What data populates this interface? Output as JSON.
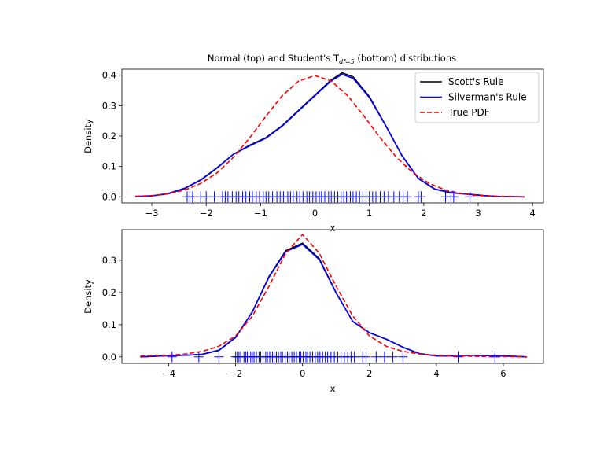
{
  "figure": {
    "title": "Normal (top) and Student's T",
    "title_sub": "df=5",
    "title_tail": " (bottom) distributions",
    "background": "#ffffff"
  },
  "chart_data": [
    {
      "type": "line",
      "title": "Normal (top) and Student's T_df=5 (bottom) distributions",
      "xlabel": "x",
      "ylabel": "Density",
      "xlim": [
        -3.55,
        4.2
      ],
      "ylim": [
        -0.02,
        0.42
      ],
      "xticks": [
        -3,
        -2,
        -1,
        0,
        1,
        2,
        3,
        4
      ],
      "yticks": [
        0.0,
        0.1,
        0.2,
        0.3,
        0.4
      ],
      "xtick_labels": [
        "−3",
        "−2",
        "−1",
        "0",
        "1",
        "2",
        "3",
        "4"
      ],
      "ytick_labels": [
        "0.0",
        "0.1",
        "0.2",
        "0.3",
        "0.4"
      ],
      "legend": {
        "placement": "top-right",
        "entries": [
          {
            "label": "Scott's Rule",
            "color": "#000000",
            "style": "solid"
          },
          {
            "label": "Silverman's Rule",
            "color": "#0000ff",
            "style": "solid"
          },
          {
            "label": "True PDF",
            "color": "#ff0000",
            "style": "dashed"
          }
        ]
      },
      "series": [
        {
          "name": "Scott's Rule",
          "color": "#000000",
          "style": "solid",
          "x": [
            -3.3,
            -3.0,
            -2.7,
            -2.4,
            -2.1,
            -1.8,
            -1.5,
            -1.2,
            -0.9,
            -0.6,
            -0.3,
            0.0,
            0.3,
            0.5,
            0.7,
            1.0,
            1.3,
            1.6,
            1.9,
            2.2,
            2.5,
            2.8,
            3.1,
            3.4,
            3.85
          ],
          "y": [
            0.001,
            0.003,
            0.01,
            0.027,
            0.055,
            0.095,
            0.14,
            0.17,
            0.195,
            0.235,
            0.285,
            0.335,
            0.385,
            0.408,
            0.395,
            0.33,
            0.235,
            0.135,
            0.06,
            0.025,
            0.013,
            0.009,
            0.004,
            0.001,
            0.0
          ]
        },
        {
          "name": "Silverman's Rule",
          "color": "#0000ff",
          "style": "solid",
          "x": [
            -3.3,
            -3.0,
            -2.7,
            -2.4,
            -2.1,
            -1.8,
            -1.5,
            -1.2,
            -0.9,
            -0.6,
            -0.3,
            0.0,
            0.3,
            0.5,
            0.7,
            1.0,
            1.3,
            1.6,
            1.9,
            2.2,
            2.5,
            2.8,
            3.1,
            3.4,
            3.85
          ],
          "y": [
            0.001,
            0.003,
            0.011,
            0.028,
            0.056,
            0.096,
            0.14,
            0.168,
            0.193,
            0.233,
            0.283,
            0.333,
            0.382,
            0.403,
            0.39,
            0.327,
            0.234,
            0.136,
            0.061,
            0.026,
            0.014,
            0.009,
            0.004,
            0.001,
            0.0
          ]
        },
        {
          "name": "True PDF",
          "color": "#ff0000",
          "style": "dashed",
          "x": [
            -3.3,
            -3.0,
            -2.7,
            -2.4,
            -2.1,
            -1.8,
            -1.5,
            -1.2,
            -0.9,
            -0.6,
            -0.3,
            0.0,
            0.3,
            0.6,
            0.9,
            1.2,
            1.5,
            1.8,
            2.1,
            2.4,
            2.7,
            3.0,
            3.3,
            3.6,
            3.85
          ],
          "y": [
            0.002,
            0.004,
            0.01,
            0.022,
            0.044,
            0.079,
            0.13,
            0.194,
            0.266,
            0.333,
            0.381,
            0.399,
            0.381,
            0.333,
            0.266,
            0.194,
            0.13,
            0.079,
            0.044,
            0.022,
            0.01,
            0.004,
            0.002,
            0.001,
            0.0
          ]
        }
      ],
      "rug": {
        "color": "#0000ff",
        "values": [
          -2.35,
          -2.3,
          -2.25,
          -2.1,
          -2.0,
          -1.85,
          -1.7,
          -1.65,
          -1.6,
          -1.52,
          -1.45,
          -1.4,
          -1.33,
          -1.27,
          -1.2,
          -1.15,
          -1.08,
          -1.02,
          -0.95,
          -0.9,
          -0.85,
          -0.78,
          -0.7,
          -0.64,
          -0.58,
          -0.5,
          -0.45,
          -0.4,
          -0.33,
          -0.28,
          -0.22,
          -0.15,
          -0.1,
          -0.04,
          0.02,
          0.08,
          0.12,
          0.18,
          0.25,
          0.3,
          0.36,
          0.42,
          0.48,
          0.53,
          0.58,
          0.65,
          0.7,
          0.76,
          0.82,
          0.88,
          0.94,
          1.0,
          1.06,
          1.12,
          1.2,
          1.27,
          1.35,
          1.45,
          1.55,
          1.62,
          1.7,
          1.9,
          1.95,
          2.4,
          2.5,
          2.55,
          2.85
        ]
      }
    },
    {
      "type": "line",
      "title": "",
      "xlabel": "x",
      "ylabel": "Density",
      "xlim": [
        -5.4,
        7.2
      ],
      "ylim": [
        -0.02,
        0.395
      ],
      "xticks": [
        -4,
        -2,
        0,
        2,
        4,
        6
      ],
      "yticks": [
        0.0,
        0.1,
        0.2,
        0.3
      ],
      "xtick_labels": [
        "−4",
        "−2",
        "0",
        "2",
        "4",
        "6"
      ],
      "ytick_labels": [
        "0.0",
        "0.1",
        "0.2",
        "0.3"
      ],
      "series": [
        {
          "name": "Scott's Rule",
          "color": "#000000",
          "style": "solid",
          "x": [
            -4.85,
            -4.0,
            -3.5,
            -3.0,
            -2.5,
            -2.0,
            -1.5,
            -1.0,
            -0.5,
            0.0,
            0.5,
            1.0,
            1.5,
            2.0,
            2.5,
            3.0,
            3.5,
            4.0,
            4.5,
            5.0,
            5.5,
            6.0,
            6.7
          ],
          "y": [
            0.0,
            0.004,
            0.005,
            0.008,
            0.02,
            0.06,
            0.14,
            0.25,
            0.33,
            0.353,
            0.305,
            0.2,
            0.11,
            0.075,
            0.055,
            0.03,
            0.01,
            0.003,
            0.003,
            0.005,
            0.004,
            0.003,
            0.0
          ]
        },
        {
          "name": "Silverman's Rule",
          "color": "#0000ff",
          "style": "solid",
          "x": [
            -4.85,
            -4.0,
            -3.5,
            -3.0,
            -2.5,
            -2.0,
            -1.5,
            -1.0,
            -0.5,
            0.0,
            0.5,
            1.0,
            1.5,
            2.0,
            2.5,
            3.0,
            3.5,
            4.0,
            4.5,
            5.0,
            5.5,
            6.0,
            6.7
          ],
          "y": [
            0.0,
            0.004,
            0.005,
            0.008,
            0.021,
            0.061,
            0.14,
            0.248,
            0.327,
            0.349,
            0.302,
            0.199,
            0.11,
            0.075,
            0.055,
            0.03,
            0.01,
            0.003,
            0.003,
            0.005,
            0.004,
            0.003,
            0.0
          ]
        },
        {
          "name": "True PDF",
          "color": "#ff0000",
          "style": "dashed",
          "x": [
            -4.85,
            -4.0,
            -3.5,
            -3.0,
            -2.5,
            -2.0,
            -1.5,
            -1.0,
            -0.5,
            0.0,
            0.5,
            1.0,
            1.5,
            2.0,
            2.5,
            3.0,
            3.5,
            4.0,
            4.5,
            5.0,
            5.5,
            6.0,
            6.7
          ],
          "y": [
            0.003,
            0.005,
            0.009,
            0.017,
            0.033,
            0.065,
            0.127,
            0.22,
            0.322,
            0.38,
            0.322,
            0.22,
            0.127,
            0.065,
            0.033,
            0.017,
            0.009,
            0.005,
            0.003,
            0.002,
            0.001,
            0.001,
            0.0
          ]
        }
      ],
      "rug": {
        "color": "#0000ff",
        "values": [
          -3.9,
          -3.1,
          -2.5,
          -2.0,
          -1.95,
          -1.9,
          -1.85,
          -1.75,
          -1.7,
          -1.65,
          -1.55,
          -1.5,
          -1.45,
          -1.38,
          -1.3,
          -1.25,
          -1.18,
          -1.1,
          -1.05,
          -0.98,
          -0.9,
          -0.85,
          -0.78,
          -0.72,
          -0.65,
          -0.6,
          -0.52,
          -0.45,
          -0.4,
          -0.32,
          -0.25,
          -0.18,
          -0.1,
          -0.05,
          0.02,
          0.1,
          0.15,
          0.22,
          0.3,
          0.38,
          0.45,
          0.52,
          0.6,
          0.68,
          0.75,
          0.85,
          0.95,
          1.05,
          1.15,
          1.25,
          1.35,
          1.45,
          1.55,
          1.8,
          1.9,
          2.2,
          2.45,
          2.7,
          3.0,
          4.65,
          5.75
        ]
      }
    }
  ]
}
